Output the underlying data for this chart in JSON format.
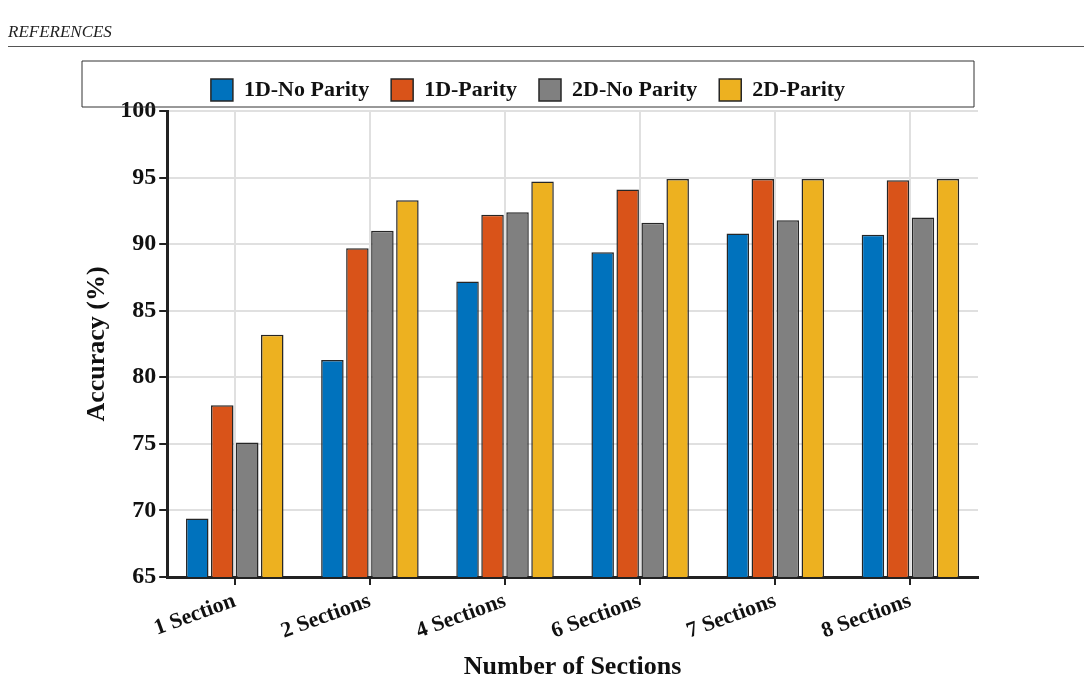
{
  "chart_data": {
    "type": "bar",
    "xlabel": "Number of Sections",
    "ylabel": "Accuracy (%)",
    "annotations": [
      "REFERENCES"
    ],
    "categories": [
      "1 Section",
      "2 Sections",
      "4 Sections",
      "6 Sections",
      "7 Sections",
      "8 Sections"
    ],
    "series": [
      {
        "name": "1D-No Parity",
        "color": "#0072bd",
        "values": [
          69.4,
          81.3,
          87.2,
          89.4,
          90.8,
          90.7
        ]
      },
      {
        "name": "1D-Parity",
        "color": "#d95319",
        "values": [
          77.9,
          89.7,
          92.2,
          94.1,
          94.9,
          94.8
        ]
      },
      {
        "name": "2D-No Parity",
        "color": "#808080",
        "values": [
          75.1,
          91.0,
          92.4,
          91.6,
          91.8,
          92.0
        ]
      },
      {
        "name": "2D-Parity",
        "color": "#edb120",
        "values": [
          83.2,
          93.3,
          94.7,
          94.9,
          94.9,
          94.9
        ]
      }
    ],
    "ylim": [
      65,
      100
    ],
    "yticks": [
      65,
      70,
      75,
      80,
      85,
      90,
      95,
      100
    ],
    "grid": true,
    "legend": "top"
  }
}
